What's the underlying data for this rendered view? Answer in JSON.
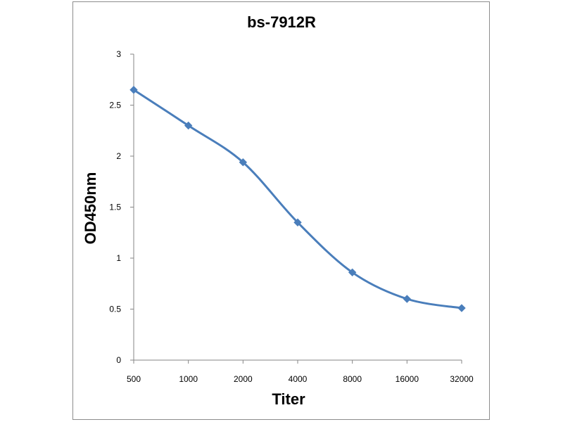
{
  "chart_data": {
    "type": "line",
    "title": "bs-7912R",
    "xlabel": "Titer",
    "ylabel": "OD450nm",
    "categories": [
      "500",
      "1000",
      "2000",
      "4000",
      "8000",
      "16000",
      "32000"
    ],
    "series": [
      {
        "values": [
          2.65,
          2.3,
          1.94,
          1.35,
          0.86,
          0.6,
          0.51
        ]
      }
    ],
    "ylim": [
      0,
      3
    ],
    "yticks": [
      "0",
      "0.5",
      "1",
      "1.5",
      "2",
      "2.5",
      "3"
    ],
    "grid": false,
    "legend": "none",
    "marker": "diamond",
    "smooth": true,
    "colors": {
      "series": "#4a7ebb",
      "axis": "#868686"
    }
  }
}
